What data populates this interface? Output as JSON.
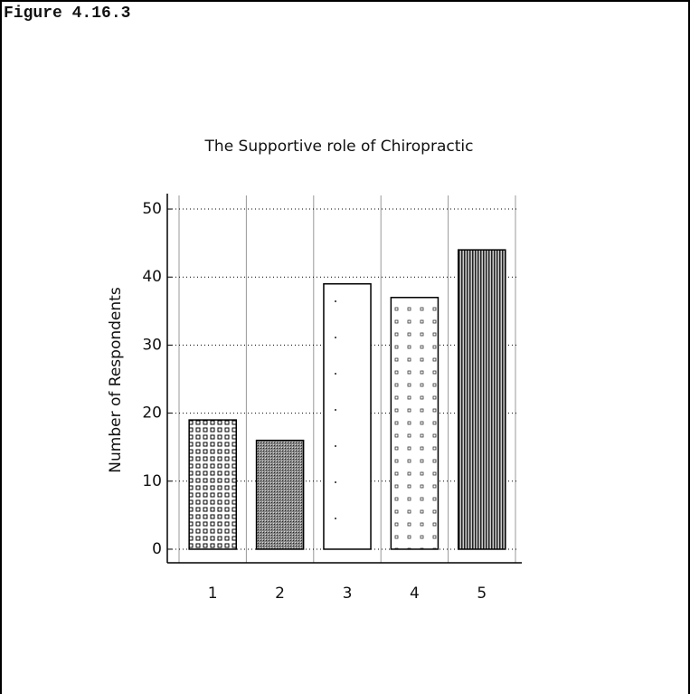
{
  "header": {
    "figure": "Figure 4.16.3"
  },
  "chart_data": {
    "type": "bar",
    "title": "The Supportive role of Chiropractic",
    "y_label": "Number of Respondents",
    "categories": [
      "1",
      "2",
      "3",
      "4",
      "5"
    ],
    "values": [
      19,
      16,
      39,
      37,
      44
    ],
    "color": "#000000",
    "ylim": [
      -2,
      52
    ],
    "yticks": [
      0,
      10,
      20,
      30,
      40,
      50
    ],
    "grid": true
  }
}
